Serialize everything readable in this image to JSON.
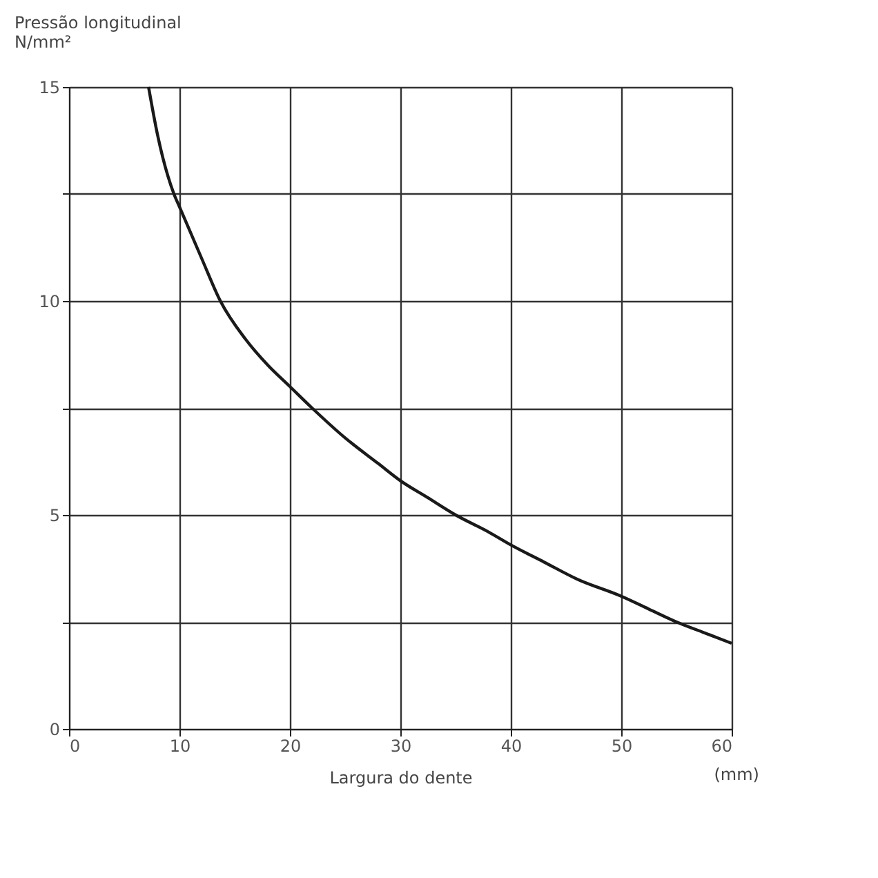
{
  "chart_data": {
    "type": "line",
    "xlabel": "Largura do dente",
    "ylabel": "Pressão longitudinal\nN/mm²",
    "annotations": [
      "(mm)"
    ],
    "x": [
      7.2,
      8,
      9.5,
      10,
      12,
      13.7,
      16,
      18,
      20,
      22,
      25,
      28,
      30,
      32.5,
      35,
      38,
      40,
      43,
      46,
      50,
      52.5,
      55,
      58,
      60
    ],
    "series": [
      {
        "color": "#1a1a1a",
        "values": [
          15,
          13.9,
          12.5,
          12.2,
          11,
          10,
          9.1,
          8.5,
          8,
          7.5,
          6.8,
          6.2,
          5.8,
          5.4,
          5,
          4.6,
          4.3,
          3.9,
          3.5,
          3.1,
          2.8,
          2.5,
          2.2,
          2.0
        ]
      }
    ],
    "xlim": [
      0,
      60
    ],
    "ylim": [
      0,
      15
    ],
    "xticks": [
      0,
      10,
      20,
      30,
      40,
      50,
      60
    ],
    "yticks": [
      0,
      {
        "value": 2.5,
        "label": null
      },
      5,
      {
        "value": 7.5,
        "label": null
      },
      10,
      {
        "value": 12.5,
        "label": null
      },
      15
    ],
    "grid": true,
    "line_style": "solid",
    "marker": "none"
  }
}
